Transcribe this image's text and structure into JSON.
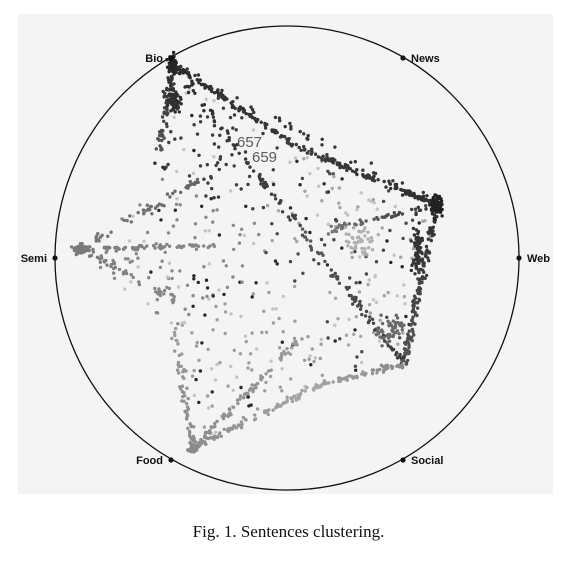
{
  "chart_data": {
    "type": "scatter",
    "subtype": "radviz",
    "anchors": [
      "Bio",
      "News",
      "Web",
      "Social",
      "Food",
      "Semi"
    ],
    "annotations": [
      "657",
      "659"
    ],
    "caption": "Fig. 1.  Sentences clustering.",
    "grid": false,
    "legend": "none",
    "colors": {
      "Bio": "#2b2b2b",
      "News": "#3a3a3a",
      "Web": "#2e2e2e",
      "Social": "#555555",
      "Food": "#8c8c8c",
      "Semi": "#7a7a7a"
    }
  }
}
